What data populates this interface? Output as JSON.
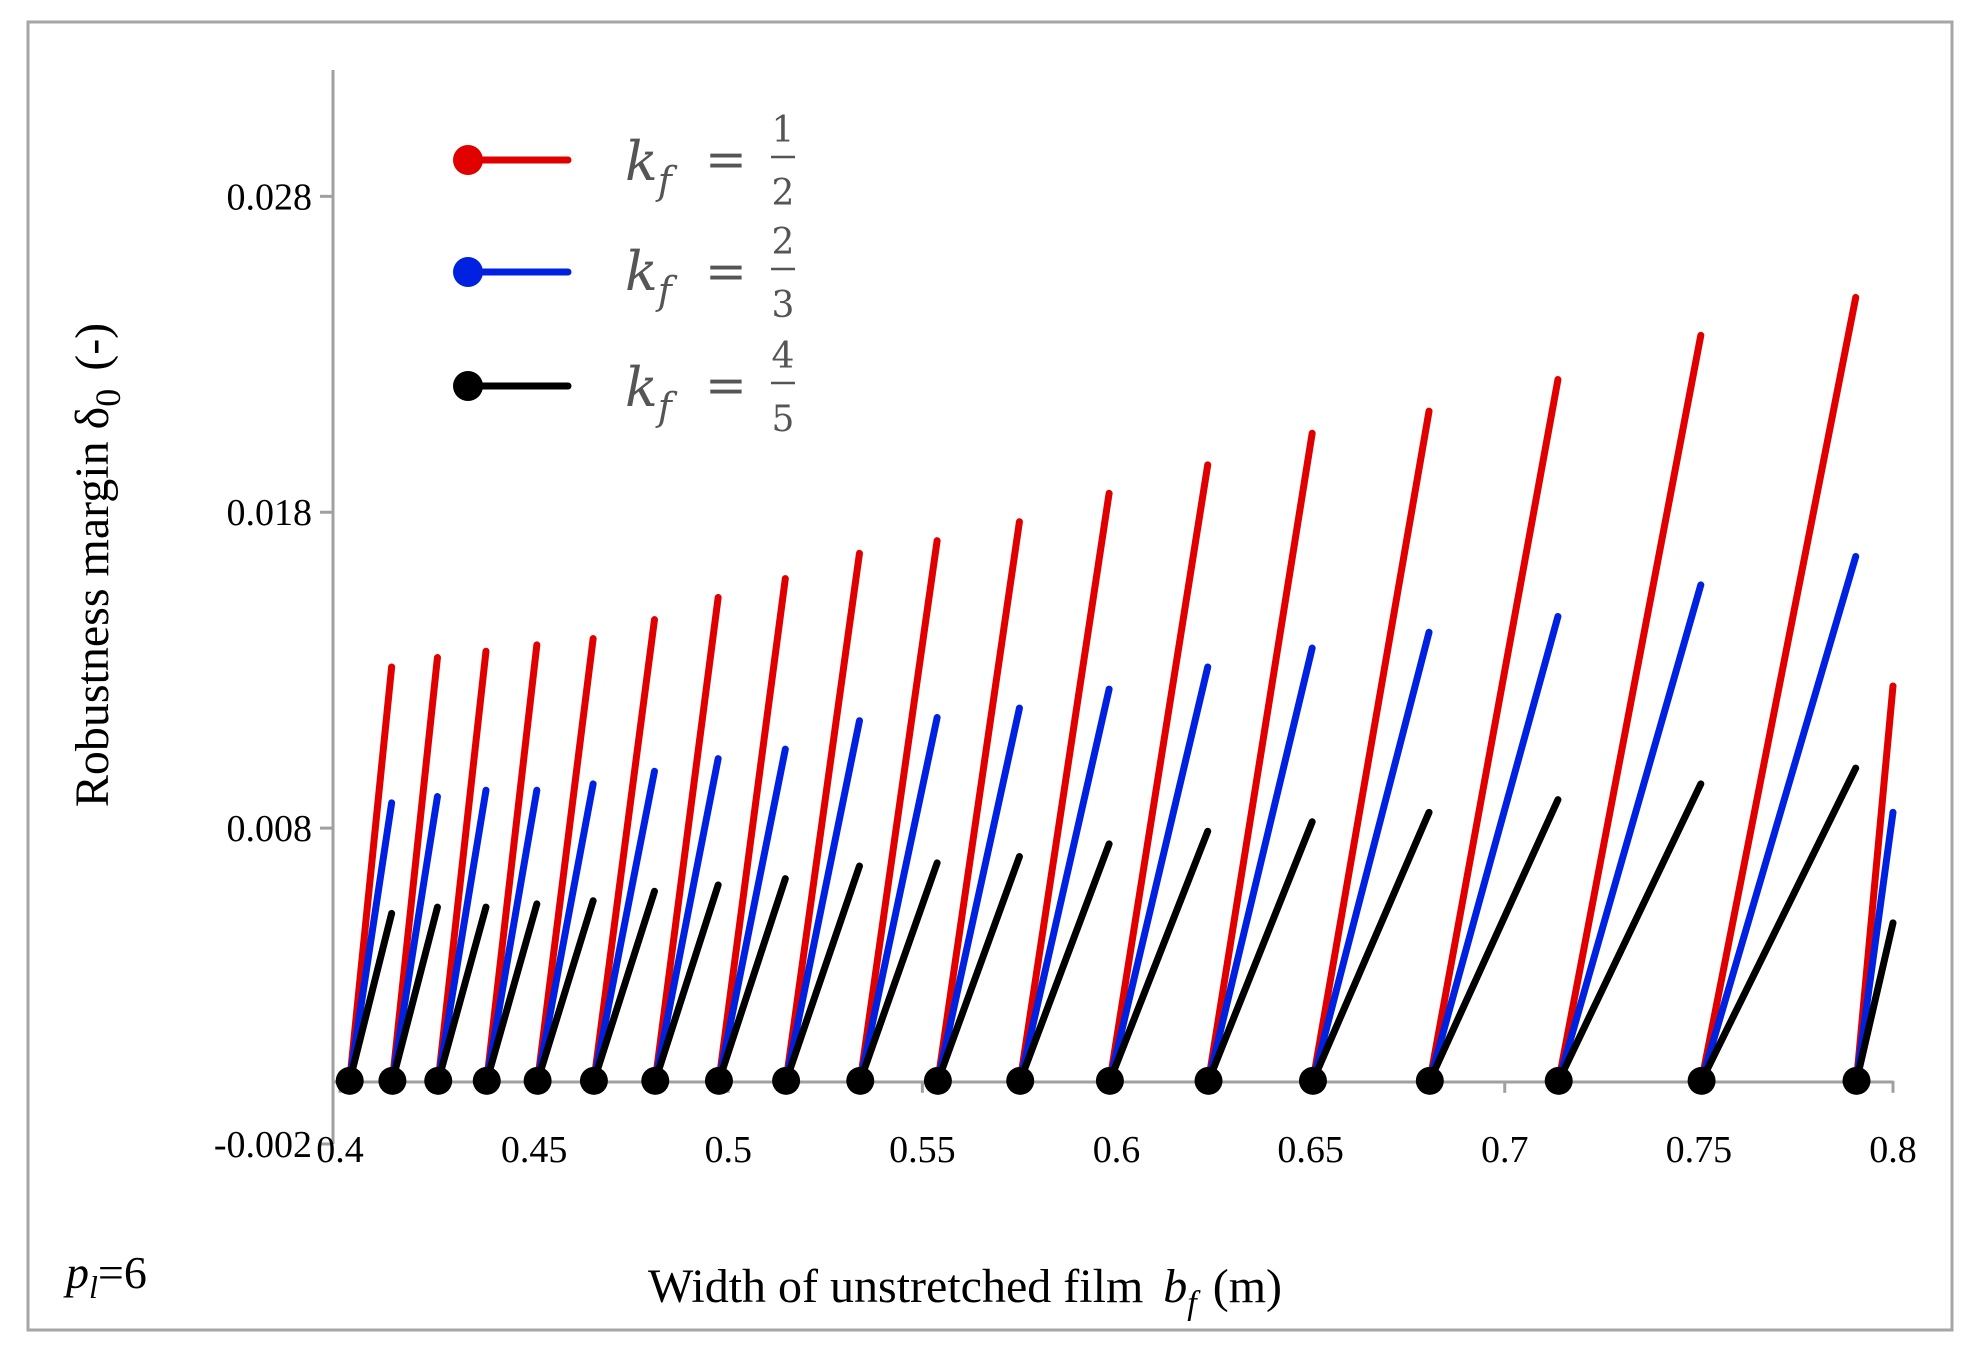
{
  "chart_data": {
    "type": "line",
    "title": "",
    "xlabel": "Width of unstretched film",
    "xlabel_symbol": "b",
    "xlabel_symbol_sub": "f",
    "xlabel_unit": "(m)",
    "ylabel": "Robustness margin δ",
    "ylabel_sub": "0",
    "ylabel_unit": "(-)",
    "annotation": {
      "text_main": "p",
      "text_sub": "l",
      "text_rest": "=6"
    },
    "xlim": [
      0.4,
      0.8
    ],
    "ylim": [
      -0.002,
      0.032
    ],
    "x_ticks": [
      0.4,
      0.45,
      0.5,
      0.55,
      0.6,
      0.65,
      0.7,
      0.75,
      0.8
    ],
    "x_tick_labels": [
      "0.4",
      "0.45",
      "0.5",
      "0.55",
      "0.6",
      "0.65",
      "0.7",
      "0.75",
      "0.8"
    ],
    "y_ticks": [
      -0.002,
      0.008,
      0.018,
      0.028
    ],
    "y_tick_labels": [
      "-0.002",
      "0.008",
      "0.018",
      "0.028"
    ],
    "legend": [
      {
        "name": "k_f = 1/2",
        "symbol": "k",
        "sub": "f",
        "num": "1",
        "den": "2",
        "color": "#e00000"
      },
      {
        "name": "k_f = 2/3",
        "symbol": "k",
        "sub": "f",
        "num": "2",
        "den": "3",
        "color": "#0022e0"
      },
      {
        "name": "k_f = 4/5",
        "symbol": "k",
        "sub": "f",
        "num": "4",
        "den": "5",
        "color": "#000000"
      }
    ],
    "zero_points_x": [
      0.4025,
      0.4135,
      0.4253,
      0.4378,
      0.4509,
      0.4654,
      0.4812,
      0.4976,
      0.5149,
      0.534,
      0.554,
      0.5752,
      0.5983,
      0.6237,
      0.6506,
      0.6807,
      0.7139,
      0.7507,
      0.7906
    ],
    "series": [
      {
        "name": "k_f = 1/2",
        "color": "#e00000",
        "segments": [
          {
            "x": [
              0.4025,
              0.4133
            ],
            "y": [
              0,
              0.0131
            ]
          },
          {
            "x": [
              0.4135,
              0.4251
            ],
            "y": [
              0,
              0.0134
            ]
          },
          {
            "x": [
              0.4253,
              0.4376
            ],
            "y": [
              0,
              0.0136
            ]
          },
          {
            "x": [
              0.4378,
              0.4507
            ],
            "y": [
              0,
              0.0138
            ]
          },
          {
            "x": [
              0.4509,
              0.4652
            ],
            "y": [
              0,
              0.014
            ]
          },
          {
            "x": [
              0.4654,
              0.481
            ],
            "y": [
              0,
              0.0146
            ]
          },
          {
            "x": [
              0.4812,
              0.4974
            ],
            "y": [
              0,
              0.0153
            ]
          },
          {
            "x": [
              0.4976,
              0.5147
            ],
            "y": [
              0,
              0.0159
            ]
          },
          {
            "x": [
              0.5149,
              0.5338
            ],
            "y": [
              0,
              0.0167
            ]
          },
          {
            "x": [
              0.534,
              0.5538
            ],
            "y": [
              0,
              0.0171
            ]
          },
          {
            "x": [
              0.554,
              0.575
            ],
            "y": [
              0,
              0.0177
            ]
          },
          {
            "x": [
              0.5752,
              0.5981
            ],
            "y": [
              0,
              0.0186
            ]
          },
          {
            "x": [
              0.5983,
              0.6235
            ],
            "y": [
              0,
              0.0195
            ]
          },
          {
            "x": [
              0.6237,
              0.6504
            ],
            "y": [
              0,
              0.0205
            ]
          },
          {
            "x": [
              0.6506,
              0.6805
            ],
            "y": [
              0,
              0.0212
            ]
          },
          {
            "x": [
              0.6807,
              0.7137
            ],
            "y": [
              0,
              0.0222
            ]
          },
          {
            "x": [
              0.7139,
              0.7505
            ],
            "y": [
              0,
              0.0236
            ]
          },
          {
            "x": [
              0.7507,
              0.7904
            ],
            "y": [
              0,
              0.0248
            ]
          },
          {
            "x": [
              0.7906,
              0.8
            ],
            "y": [
              0,
              0.0125
            ]
          }
        ]
      },
      {
        "name": "k_f = 2/3",
        "color": "#0022e0",
        "segments": [
          {
            "x": [
              0.4025,
              0.4133
            ],
            "y": [
              0,
              0.0088
            ]
          },
          {
            "x": [
              0.4135,
              0.4251
            ],
            "y": [
              0,
              0.009
            ]
          },
          {
            "x": [
              0.4253,
              0.4376
            ],
            "y": [
              0,
              0.0092
            ]
          },
          {
            "x": [
              0.4378,
              0.4507
            ],
            "y": [
              0,
              0.0092
            ]
          },
          {
            "x": [
              0.4509,
              0.4652
            ],
            "y": [
              0,
              0.0094
            ]
          },
          {
            "x": [
              0.4654,
              0.481
            ],
            "y": [
              0,
              0.0098
            ]
          },
          {
            "x": [
              0.4812,
              0.4974
            ],
            "y": [
              0,
              0.0102
            ]
          },
          {
            "x": [
              0.4976,
              0.5147
            ],
            "y": [
              0,
              0.0105
            ]
          },
          {
            "x": [
              0.5149,
              0.5338
            ],
            "y": [
              0,
              0.0114
            ]
          },
          {
            "x": [
              0.534,
              0.5538
            ],
            "y": [
              0,
              0.0115
            ]
          },
          {
            "x": [
              0.554,
              0.575
            ],
            "y": [
              0,
              0.0118
            ]
          },
          {
            "x": [
              0.5752,
              0.5981
            ],
            "y": [
              0,
              0.0124
            ]
          },
          {
            "x": [
              0.5983,
              0.6235
            ],
            "y": [
              0,
              0.0131
            ]
          },
          {
            "x": [
              0.6237,
              0.6504
            ],
            "y": [
              0,
              0.0137
            ]
          },
          {
            "x": [
              0.6506,
              0.6805
            ],
            "y": [
              0,
              0.0142
            ]
          },
          {
            "x": [
              0.6807,
              0.7137
            ],
            "y": [
              0,
              0.0147
            ]
          },
          {
            "x": [
              0.7139,
              0.7505
            ],
            "y": [
              0,
              0.0157
            ]
          },
          {
            "x": [
              0.7507,
              0.7904
            ],
            "y": [
              0,
              0.0166
            ]
          },
          {
            "x": [
              0.7906,
              0.8
            ],
            "y": [
              0,
              0.0085
            ]
          }
        ]
      },
      {
        "name": "k_f = 4/5",
        "color": "#000000",
        "segments": [
          {
            "x": [
              0.4025,
              0.4133
            ],
            "y": [
              0,
              0.0053
            ]
          },
          {
            "x": [
              0.4135,
              0.4251
            ],
            "y": [
              0,
              0.0055
            ]
          },
          {
            "x": [
              0.4253,
              0.4376
            ],
            "y": [
              0,
              0.0055
            ]
          },
          {
            "x": [
              0.4378,
              0.4507
            ],
            "y": [
              0,
              0.0056
            ]
          },
          {
            "x": [
              0.4509,
              0.4652
            ],
            "y": [
              0,
              0.0057
            ]
          },
          {
            "x": [
              0.4654,
              0.481
            ],
            "y": [
              0,
              0.006
            ]
          },
          {
            "x": [
              0.4812,
              0.4974
            ],
            "y": [
              0,
              0.0062
            ]
          },
          {
            "x": [
              0.4976,
              0.5147
            ],
            "y": [
              0,
              0.0064
            ]
          },
          {
            "x": [
              0.5149,
              0.5338
            ],
            "y": [
              0,
              0.0068
            ]
          },
          {
            "x": [
              0.534,
              0.5538
            ],
            "y": [
              0,
              0.0069
            ]
          },
          {
            "x": [
              0.554,
              0.575
            ],
            "y": [
              0,
              0.0071
            ]
          },
          {
            "x": [
              0.5752,
              0.5981
            ],
            "y": [
              0,
              0.0075
            ]
          },
          {
            "x": [
              0.5983,
              0.6235
            ],
            "y": [
              0,
              0.0079
            ]
          },
          {
            "x": [
              0.6237,
              0.6504
            ],
            "y": [
              0,
              0.0082
            ]
          },
          {
            "x": [
              0.6506,
              0.6805
            ],
            "y": [
              0,
              0.0085
            ]
          },
          {
            "x": [
              0.6807,
              0.7137
            ],
            "y": [
              0,
              0.0089
            ]
          },
          {
            "x": [
              0.7139,
              0.7505
            ],
            "y": [
              0,
              0.0094
            ]
          },
          {
            "x": [
              0.7507,
              0.7904
            ],
            "y": [
              0,
              0.0099
            ]
          },
          {
            "x": [
              0.7906,
              0.8
            ],
            "y": [
              0,
              0.005
            ]
          }
        ]
      }
    ]
  }
}
